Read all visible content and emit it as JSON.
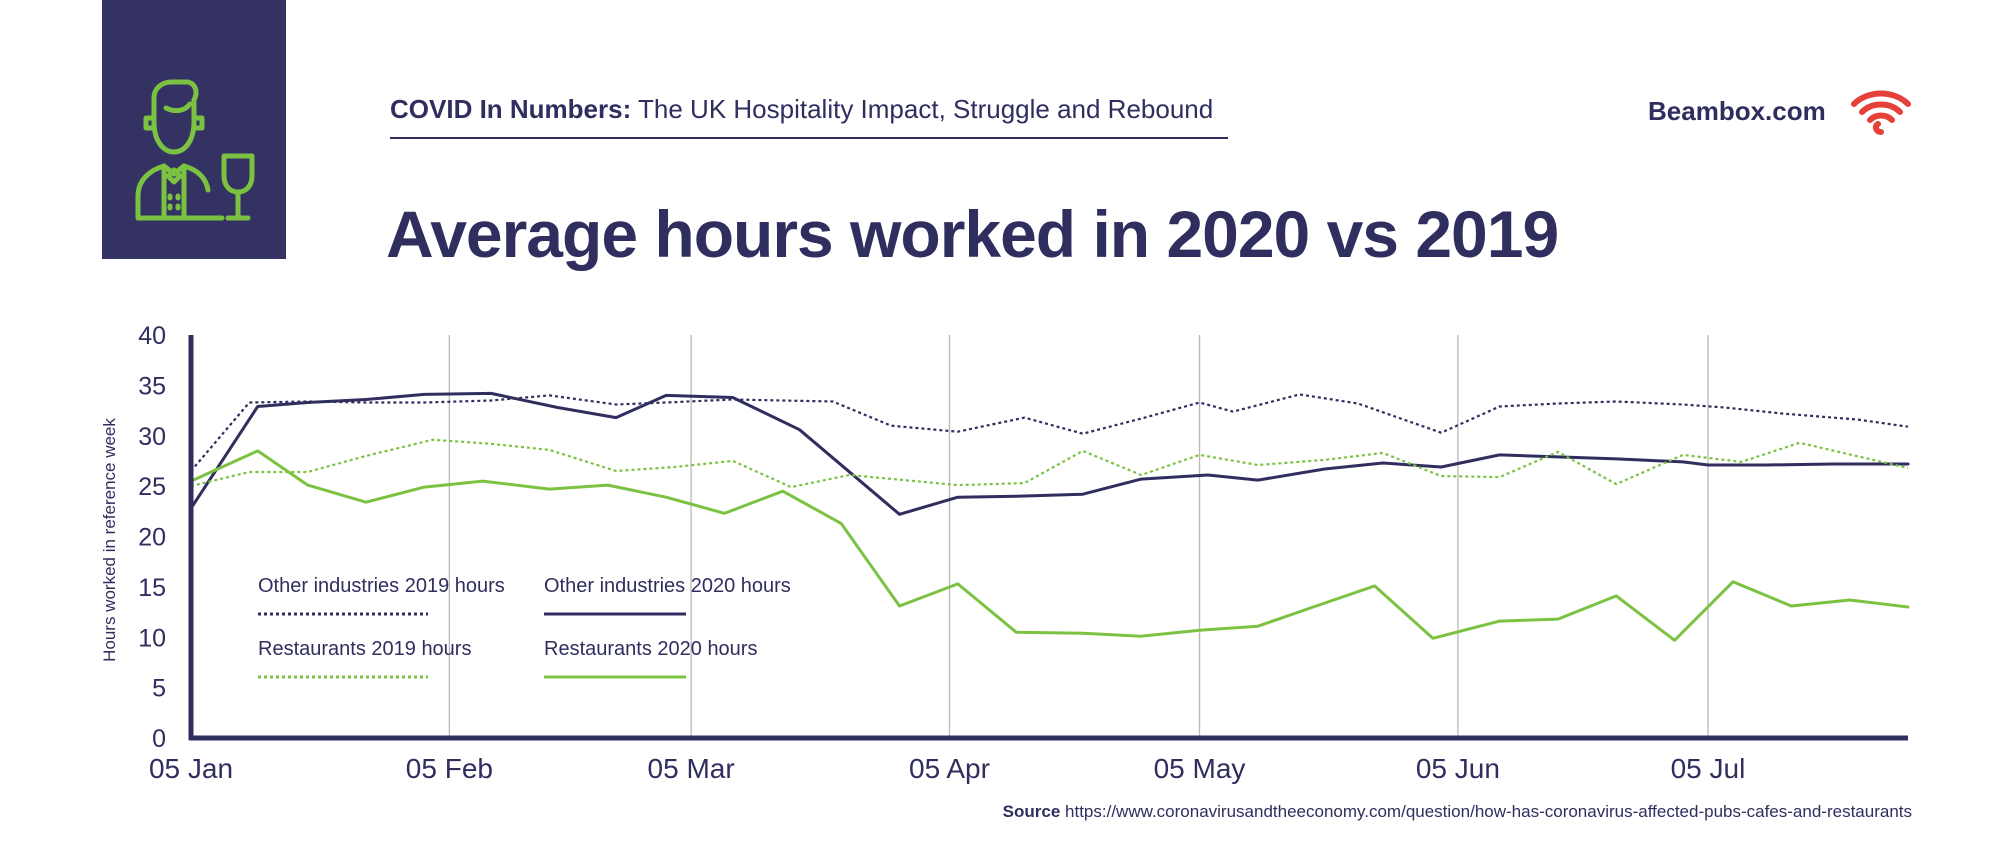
{
  "header": {
    "subtitle_bold": "COVID In Numbers:",
    "subtitle_rest": "The UK Hospitality Impact, Struggle and Rebound",
    "brand": "Beambox.com",
    "logo_icon": "waiter-icon",
    "brand_icon": "wifi-icon"
  },
  "colors": {
    "navy": "#2f2e5e",
    "green": "#7cc242",
    "brand_red": "#e5403a",
    "grid": "#b9b9b9"
  },
  "source": {
    "label": "Source",
    "url": "https://www.coronavirusandtheeconomy.com/question/how-has-coronavirus-affected-pubs-cafes-and-restaurants"
  },
  "chart_data": {
    "type": "line",
    "title": "Average hours worked in 2020 vs 2019",
    "xlabel": "",
    "ylabel": "Hours worked in reference week",
    "ylim": [
      0,
      40
    ],
    "yticks": [
      0,
      5,
      10,
      15,
      20,
      25,
      30,
      35,
      40
    ],
    "x_range_days": [
      0,
      206
    ],
    "x_ticks": [
      {
        "label": "05 Jan",
        "day": 0
      },
      {
        "label": "05 Feb",
        "day": 31
      },
      {
        "label": "05 Mar",
        "day": 60
      },
      {
        "label": "05 Apr",
        "day": 91
      },
      {
        "label": "05 May",
        "day": 121
      },
      {
        "label": "05 Jun",
        "day": 152
      },
      {
        "label": "05 Jul",
        "day": 182
      }
    ],
    "grid": "vertical",
    "legend_position": "bottom-left",
    "series": [
      {
        "name": "Other industries 2019 hours",
        "color": "#2f2e5e",
        "style": "dotted",
        "x": [
          0,
          7,
          14,
          21,
          28,
          36,
          43,
          51,
          57,
          65,
          77,
          84,
          92,
          100,
          107,
          114,
          121,
          125,
          133,
          140,
          150,
          157,
          164,
          171,
          179,
          184,
          191,
          200,
          206
        ],
        "y": [
          26.5,
          33.3,
          33.4,
          33.3,
          33.3,
          33.5,
          34,
          33.1,
          33.3,
          33.6,
          33.4,
          31,
          30.4,
          31.8,
          30.2,
          31.7,
          33.3,
          32.4,
          34.1,
          33.2,
          30.3,
          32.9,
          33.2,
          33.4,
          33.1,
          32.8,
          32.2,
          31.6,
          30.9
        ]
      },
      {
        "name": "Other industries 2020 hours",
        "color": "#2f2e5e",
        "style": "solid",
        "x": [
          0,
          8,
          14,
          21,
          28,
          36,
          44,
          51,
          57,
          65,
          73,
          85,
          92,
          99,
          107,
          114,
          122,
          128,
          136,
          143,
          150,
          157,
          164,
          171,
          179,
          182,
          189,
          197,
          206
        ],
        "y": [
          22.8,
          32.9,
          33.3,
          33.6,
          34.1,
          34.2,
          32.8,
          31.8,
          34,
          33.8,
          30.6,
          22.2,
          23.9,
          24,
          24.2,
          25.7,
          26.1,
          25.6,
          26.7,
          27.3,
          26.9,
          28.1,
          27.9,
          27.7,
          27.4,
          27.1,
          27.1,
          27.2,
          27.2
        ]
      },
      {
        "name": "Restaurants 2019 hours",
        "color": "#7cc242",
        "style": "dotted",
        "x": [
          0,
          7,
          14,
          21,
          29,
          36,
          43,
          51,
          58,
          65,
          72,
          79,
          92,
          100,
          107,
          114,
          121,
          128,
          136,
          143,
          150,
          157,
          164,
          171,
          179,
          186,
          193,
          206
        ],
        "y": [
          25,
          26.4,
          26.4,
          28,
          29.6,
          29.2,
          28.6,
          26.5,
          26.9,
          27.5,
          24.9,
          26.1,
          25.1,
          25.3,
          28.5,
          26.1,
          28.1,
          27.1,
          27.6,
          28.3,
          26,
          25.9,
          28.4,
          25.2,
          28.1,
          27.4,
          29.3,
          26.8
        ]
      },
      {
        "name": "Restaurants 2020 hours",
        "color": "#7cc242",
        "style": "solid",
        "x": [
          0,
          8,
          14,
          21,
          28,
          35,
          43,
          50,
          57,
          64,
          71,
          78,
          85,
          92,
          99,
          107,
          114,
          121,
          128,
          135,
          142,
          149,
          157,
          164,
          171,
          178,
          185,
          192,
          199,
          206
        ],
        "y": [
          25.5,
          28.5,
          25.1,
          23.4,
          24.9,
          25.5,
          24.7,
          25.1,
          23.9,
          22.3,
          24.5,
          21.3,
          13.1,
          15.3,
          10.5,
          10.4,
          10.1,
          10.7,
          11.1,
          13.1,
          15.1,
          9.9,
          11.6,
          11.8,
          14.1,
          9.7,
          15.5,
          13.1,
          13.7,
          13
        ]
      }
    ]
  }
}
